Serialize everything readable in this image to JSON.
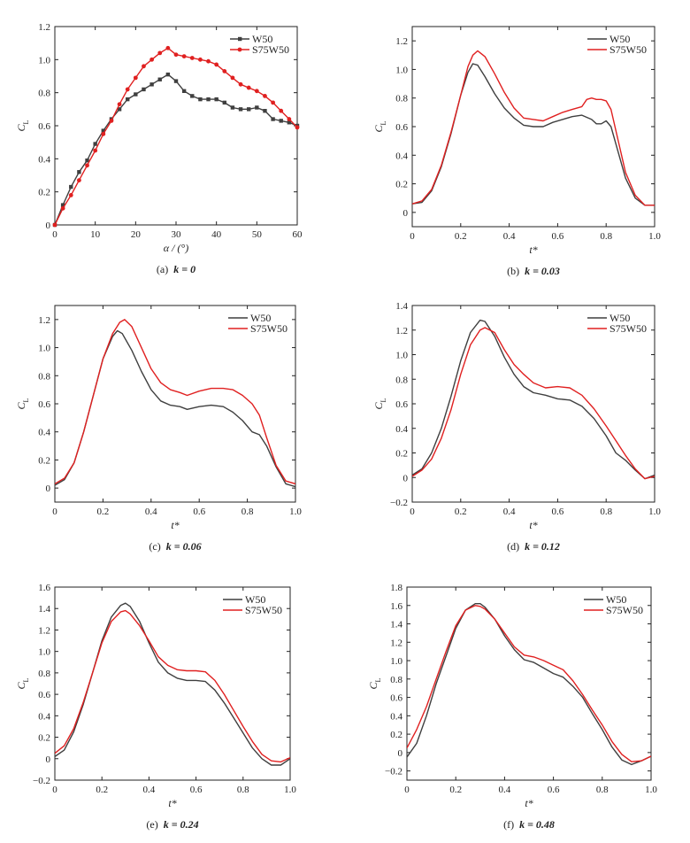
{
  "colors": {
    "W50": "#3f3f3f",
    "S75W50": "#e02020",
    "axis": "#222222"
  },
  "legend_labels": [
    "W50",
    "S75W50"
  ],
  "chart_data": [
    {
      "id": "a",
      "type": "line",
      "markers": true,
      "caption_prefix": "(a)",
      "caption_k": "k = 0",
      "xlabel": "α / (°)",
      "ylabel": "C",
      "ylabel_sub": "L",
      "xlim": [
        0,
        60
      ],
      "ylim": [
        0,
        1.2
      ],
      "xticks": [
        0,
        10,
        20,
        30,
        40,
        50,
        60
      ],
      "xtick_labels": [
        "0",
        "10",
        "20",
        "30",
        "40",
        "50",
        "60"
      ],
      "yticks": [
        0,
        0.2,
        0.4,
        0.6,
        0.8,
        1.0,
        1.2
      ],
      "ytick_labels": [
        "0",
        "0.2",
        "0.4",
        "0.6",
        "0.8",
        "1.0",
        "1.2"
      ],
      "legend_position": "top-right",
      "series": [
        {
          "name": "W50",
          "x": [
            0,
            2,
            4,
            6,
            8,
            10,
            12,
            14,
            16,
            18,
            20,
            22,
            24,
            26,
            28,
            30,
            32,
            34,
            36,
            38,
            40,
            42,
            44,
            46,
            48,
            50,
            52,
            54,
            56,
            58,
            60
          ],
          "y": [
            0,
            0.12,
            0.23,
            0.32,
            0.39,
            0.49,
            0.57,
            0.64,
            0.7,
            0.76,
            0.79,
            0.82,
            0.85,
            0.88,
            0.91,
            0.87,
            0.81,
            0.78,
            0.76,
            0.76,
            0.76,
            0.74,
            0.71,
            0.7,
            0.7,
            0.71,
            0.69,
            0.64,
            0.63,
            0.62,
            0.6
          ]
        },
        {
          "name": "S75W50",
          "x": [
            0,
            2,
            4,
            6,
            8,
            10,
            12,
            14,
            16,
            18,
            20,
            22,
            24,
            26,
            28,
            30,
            32,
            34,
            36,
            38,
            40,
            42,
            44,
            46,
            48,
            50,
            52,
            54,
            56,
            58,
            60
          ],
          "y": [
            0,
            0.1,
            0.18,
            0.27,
            0.36,
            0.45,
            0.55,
            0.63,
            0.73,
            0.82,
            0.89,
            0.96,
            1.0,
            1.04,
            1.07,
            1.03,
            1.02,
            1.01,
            1.0,
            0.99,
            0.97,
            0.93,
            0.89,
            0.85,
            0.83,
            0.81,
            0.78,
            0.74,
            0.69,
            0.64,
            0.59
          ]
        }
      ]
    },
    {
      "id": "b",
      "type": "line",
      "markers": false,
      "caption_prefix": "(b)",
      "caption_k": "k = 0.03",
      "xlabel": "t*",
      "ylabel": "C",
      "ylabel_sub": "L",
      "xlim": [
        0,
        1.0
      ],
      "ylim": [
        -0.1,
        1.3
      ],
      "xticks": [
        0,
        0.2,
        0.4,
        0.6,
        0.8,
        1.0
      ],
      "xtick_labels": [
        "0",
        "0.2",
        "0.4",
        "0.6",
        "0.8",
        "1.0"
      ],
      "yticks": [
        0,
        0.2,
        0.4,
        0.6,
        0.8,
        1.0,
        1.2
      ],
      "ytick_labels": [
        "0",
        "0.2",
        "0.4",
        "0.6",
        "0.8",
        "1.0",
        "1.2"
      ],
      "legend_position": "top-right",
      "series": [
        {
          "name": "W50",
          "x": [
            0,
            0.04,
            0.08,
            0.12,
            0.16,
            0.2,
            0.23,
            0.25,
            0.27,
            0.3,
            0.34,
            0.38,
            0.42,
            0.46,
            0.5,
            0.54,
            0.58,
            0.62,
            0.66,
            0.7,
            0.74,
            0.76,
            0.78,
            0.8,
            0.82,
            0.85,
            0.88,
            0.92,
            0.96,
            1.0
          ],
          "y": [
            0.06,
            0.07,
            0.15,
            0.32,
            0.55,
            0.82,
            0.98,
            1.04,
            1.03,
            0.95,
            0.83,
            0.73,
            0.66,
            0.61,
            0.6,
            0.6,
            0.63,
            0.65,
            0.67,
            0.68,
            0.65,
            0.62,
            0.62,
            0.64,
            0.6,
            0.42,
            0.24,
            0.1,
            0.05,
            0.05
          ]
        },
        {
          "name": "S75W50",
          "x": [
            0,
            0.04,
            0.08,
            0.12,
            0.16,
            0.2,
            0.23,
            0.25,
            0.27,
            0.3,
            0.34,
            0.38,
            0.42,
            0.46,
            0.5,
            0.54,
            0.58,
            0.62,
            0.66,
            0.7,
            0.72,
            0.74,
            0.76,
            0.78,
            0.8,
            0.82,
            0.85,
            0.88,
            0.92,
            0.96,
            1.0
          ],
          "y": [
            0.06,
            0.08,
            0.16,
            0.33,
            0.56,
            0.82,
            1.02,
            1.1,
            1.13,
            1.09,
            0.97,
            0.84,
            0.73,
            0.66,
            0.65,
            0.64,
            0.67,
            0.7,
            0.72,
            0.74,
            0.79,
            0.8,
            0.79,
            0.79,
            0.78,
            0.72,
            0.5,
            0.28,
            0.12,
            0.05,
            0.05
          ]
        }
      ]
    },
    {
      "id": "c",
      "type": "line",
      "markers": false,
      "caption_prefix": "(c)",
      "caption_k": "k = 0.06",
      "xlabel": "t*",
      "ylabel": "C",
      "ylabel_sub": "L",
      "xlim": [
        0,
        1.0
      ],
      "ylim": [
        -0.1,
        1.3
      ],
      "xticks": [
        0,
        0.2,
        0.4,
        0.6,
        0.8,
        1.0
      ],
      "xtick_labels": [
        "0",
        "0.2",
        "0.4",
        "0.6",
        "0.8",
        "1.0"
      ],
      "yticks": [
        0,
        0.2,
        0.4,
        0.6,
        0.8,
        1.0,
        1.2
      ],
      "ytick_labels": [
        "0",
        "0.2",
        "0.4",
        "0.6",
        "0.8",
        "1.0",
        "1.2"
      ],
      "legend_position": "top-right",
      "series": [
        {
          "name": "W50",
          "x": [
            0,
            0.04,
            0.08,
            0.12,
            0.16,
            0.2,
            0.24,
            0.26,
            0.28,
            0.32,
            0.36,
            0.4,
            0.44,
            0.48,
            0.52,
            0.55,
            0.6,
            0.65,
            0.7,
            0.74,
            0.78,
            0.82,
            0.85,
            0.88,
            0.92,
            0.96,
            1.0
          ],
          "y": [
            0.02,
            0.06,
            0.18,
            0.4,
            0.66,
            0.92,
            1.08,
            1.12,
            1.1,
            0.98,
            0.83,
            0.7,
            0.62,
            0.59,
            0.58,
            0.56,
            0.58,
            0.59,
            0.58,
            0.54,
            0.48,
            0.4,
            0.38,
            0.3,
            0.15,
            0.03,
            0.01
          ]
        },
        {
          "name": "S75W50",
          "x": [
            0,
            0.04,
            0.08,
            0.12,
            0.16,
            0.2,
            0.24,
            0.27,
            0.29,
            0.32,
            0.36,
            0.4,
            0.44,
            0.48,
            0.52,
            0.55,
            0.6,
            0.65,
            0.7,
            0.74,
            0.78,
            0.82,
            0.85,
            0.88,
            0.92,
            0.96,
            1.0
          ],
          "y": [
            0.03,
            0.07,
            0.18,
            0.4,
            0.66,
            0.92,
            1.1,
            1.18,
            1.2,
            1.15,
            1.0,
            0.85,
            0.75,
            0.7,
            0.68,
            0.66,
            0.69,
            0.71,
            0.71,
            0.7,
            0.66,
            0.6,
            0.52,
            0.36,
            0.16,
            0.05,
            0.03
          ]
        }
      ]
    },
    {
      "id": "d",
      "type": "line",
      "markers": false,
      "caption_prefix": "(d)",
      "caption_k": "k = 0.12",
      "xlabel": "t*",
      "ylabel": "C",
      "ylabel_sub": "L",
      "xlim": [
        0,
        1.0
      ],
      "ylim": [
        -0.2,
        1.4
      ],
      "xticks": [
        0,
        0.2,
        0.4,
        0.6,
        0.8,
        1.0
      ],
      "xtick_labels": [
        "0",
        "0.2",
        "0.4",
        "0.6",
        "0.8",
        "1.0"
      ],
      "yticks": [
        -0.2,
        0,
        0.2,
        0.4,
        0.6,
        0.8,
        1.0,
        1.2,
        1.4
      ],
      "ytick_labels": [
        "−0.2",
        "0",
        "0.2",
        "0.4",
        "0.6",
        "0.8",
        "1.0",
        "1.2",
        "1.4"
      ],
      "legend_position": "top-right",
      "series": [
        {
          "name": "W50",
          "x": [
            0,
            0.04,
            0.08,
            0.12,
            0.16,
            0.2,
            0.24,
            0.28,
            0.3,
            0.34,
            0.38,
            0.42,
            0.46,
            0.5,
            0.55,
            0.6,
            0.65,
            0.7,
            0.75,
            0.8,
            0.84,
            0.88,
            0.92,
            0.96,
            1.0
          ],
          "y": [
            0.02,
            0.07,
            0.2,
            0.4,
            0.66,
            0.95,
            1.18,
            1.28,
            1.27,
            1.15,
            0.98,
            0.84,
            0.74,
            0.69,
            0.67,
            0.64,
            0.63,
            0.58,
            0.48,
            0.34,
            0.2,
            0.14,
            0.06,
            -0.01,
            0.02
          ]
        },
        {
          "name": "S75W50",
          "x": [
            0,
            0.04,
            0.08,
            0.12,
            0.16,
            0.2,
            0.24,
            0.28,
            0.3,
            0.34,
            0.38,
            0.42,
            0.46,
            0.5,
            0.55,
            0.6,
            0.65,
            0.7,
            0.75,
            0.8,
            0.84,
            0.88,
            0.92,
            0.96,
            1.0
          ],
          "y": [
            0.01,
            0.06,
            0.15,
            0.32,
            0.55,
            0.84,
            1.08,
            1.2,
            1.22,
            1.18,
            1.04,
            0.92,
            0.84,
            0.77,
            0.73,
            0.74,
            0.73,
            0.67,
            0.56,
            0.42,
            0.3,
            0.18,
            0.07,
            -0.01,
            0.01
          ]
        }
      ]
    },
    {
      "id": "e",
      "type": "line",
      "markers": false,
      "caption_prefix": "(e)",
      "caption_k": "k = 0.24",
      "xlabel": "t*",
      "ylabel": "C",
      "ylabel_sub": "L",
      "xlim": [
        0,
        1.0
      ],
      "ylim": [
        -0.2,
        1.6
      ],
      "xticks": [
        0,
        0.2,
        0.4,
        0.6,
        0.8,
        1.0
      ],
      "xtick_labels": [
        "0",
        "0.2",
        "0.4",
        "0.6",
        "0.8",
        "1.0"
      ],
      "yticks": [
        -0.2,
        0,
        0.2,
        0.4,
        0.6,
        0.8,
        1.0,
        1.2,
        1.4,
        1.6
      ],
      "ytick_labels": [
        "−0.2",
        "0",
        "0.2",
        "0.4",
        "0.6",
        "0.8",
        "1.0",
        "1.2",
        "1.4",
        "1.6"
      ],
      "legend_position": "top-right",
      "series": [
        {
          "name": "W50",
          "x": [
            0,
            0.04,
            0.08,
            0.12,
            0.16,
            0.2,
            0.24,
            0.28,
            0.3,
            0.32,
            0.36,
            0.4,
            0.44,
            0.48,
            0.52,
            0.56,
            0.6,
            0.64,
            0.68,
            0.72,
            0.76,
            0.8,
            0.84,
            0.88,
            0.92,
            0.96,
            1.0
          ],
          "y": [
            0.02,
            0.08,
            0.25,
            0.5,
            0.8,
            1.1,
            1.32,
            1.43,
            1.45,
            1.42,
            1.28,
            1.08,
            0.9,
            0.8,
            0.75,
            0.73,
            0.73,
            0.72,
            0.64,
            0.52,
            0.38,
            0.24,
            0.1,
            0.0,
            -0.06,
            -0.06,
            0.0
          ]
        },
        {
          "name": "S75W50",
          "x": [
            0,
            0.04,
            0.08,
            0.12,
            0.16,
            0.2,
            0.24,
            0.28,
            0.3,
            0.32,
            0.36,
            0.4,
            0.44,
            0.48,
            0.52,
            0.56,
            0.6,
            0.64,
            0.68,
            0.72,
            0.76,
            0.8,
            0.84,
            0.88,
            0.92,
            0.96,
            1.0
          ],
          "y": [
            0.05,
            0.12,
            0.28,
            0.52,
            0.8,
            1.08,
            1.28,
            1.37,
            1.38,
            1.35,
            1.24,
            1.1,
            0.95,
            0.87,
            0.83,
            0.82,
            0.82,
            0.81,
            0.73,
            0.6,
            0.45,
            0.3,
            0.16,
            0.04,
            -0.02,
            -0.03,
            0.01
          ]
        }
      ]
    },
    {
      "id": "f",
      "type": "line",
      "markers": false,
      "caption_prefix": "(f)",
      "caption_k": "k = 0.48",
      "xlabel": "t*",
      "ylabel": "C",
      "ylabel_sub": "L",
      "xlim": [
        0,
        1.0
      ],
      "ylim": [
        -0.3,
        1.8
      ],
      "xticks": [
        0,
        0.2,
        0.4,
        0.6,
        0.8,
        1.0
      ],
      "xtick_labels": [
        "0",
        "0.2",
        "0.4",
        "0.6",
        "0.8",
        "1.0"
      ],
      "yticks": [
        -0.2,
        0,
        0.2,
        0.4,
        0.6,
        0.8,
        1.0,
        1.2,
        1.4,
        1.6,
        1.8
      ],
      "ytick_labels": [
        "−0.2",
        "0",
        "0.2",
        "0.4",
        "0.6",
        "0.8",
        "1.0",
        "1.2",
        "1.4",
        "1.6",
        "1.8"
      ],
      "legend_position": "top-right",
      "series": [
        {
          "name": "W50",
          "x": [
            0,
            0.04,
            0.08,
            0.12,
            0.16,
            0.2,
            0.24,
            0.28,
            0.3,
            0.32,
            0.36,
            0.4,
            0.44,
            0.48,
            0.52,
            0.56,
            0.6,
            0.64,
            0.68,
            0.72,
            0.76,
            0.8,
            0.84,
            0.88,
            0.92,
            0.96,
            1.0
          ],
          "y": [
            -0.05,
            0.1,
            0.4,
            0.75,
            1.05,
            1.35,
            1.55,
            1.62,
            1.62,
            1.58,
            1.45,
            1.27,
            1.12,
            1.01,
            0.98,
            0.92,
            0.86,
            0.82,
            0.72,
            0.6,
            0.42,
            0.25,
            0.06,
            -0.08,
            -0.13,
            -0.09,
            -0.04
          ]
        },
        {
          "name": "S75W50",
          "x": [
            0,
            0.04,
            0.08,
            0.12,
            0.16,
            0.2,
            0.24,
            0.28,
            0.3,
            0.32,
            0.36,
            0.4,
            0.44,
            0.48,
            0.52,
            0.56,
            0.6,
            0.64,
            0.68,
            0.72,
            0.76,
            0.8,
            0.84,
            0.88,
            0.92,
            0.96,
            1.0
          ],
          "y": [
            0.05,
            0.25,
            0.5,
            0.8,
            1.1,
            1.38,
            1.55,
            1.6,
            1.59,
            1.56,
            1.45,
            1.3,
            1.15,
            1.06,
            1.04,
            1.0,
            0.95,
            0.9,
            0.78,
            0.63,
            0.46,
            0.3,
            0.12,
            -0.02,
            -0.1,
            -0.09,
            -0.04
          ]
        }
      ]
    }
  ]
}
